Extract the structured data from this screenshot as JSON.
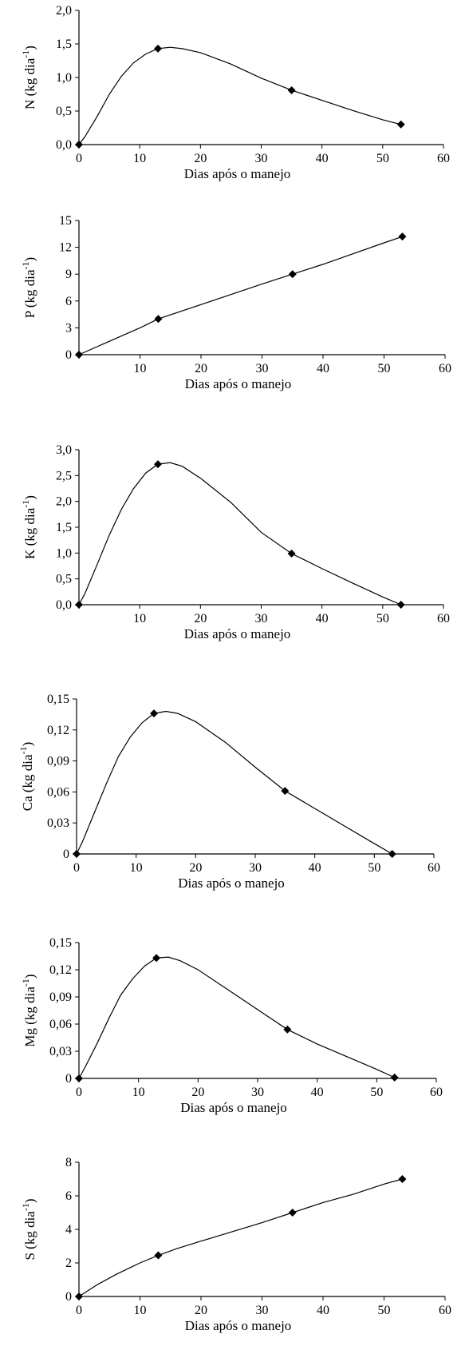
{
  "chart_data": [
    {
      "type": "line",
      "xlabel": "Dias após o manejo",
      "ylabel": "N (kg dia",
      "ylabel_sup": "-1",
      "ylabel_close": ")",
      "xlim": [
        0,
        60
      ],
      "ylim": [
        0,
        2.0
      ],
      "xticks": [
        "0",
        "10",
        "20",
        "30",
        "40",
        "50",
        "60"
      ],
      "yticks": [
        "0,0",
        "0,5",
        "1,0",
        "1,5",
        "2,0"
      ],
      "markers": {
        "x": [
          0,
          13,
          35,
          53
        ],
        "y": [
          0.0,
          1.43,
          0.81,
          0.3
        ]
      },
      "curve": {
        "x": [
          0,
          1,
          3,
          5,
          7,
          9,
          11,
          13,
          15,
          17,
          20,
          25,
          30,
          35,
          40,
          45,
          50,
          53
        ],
        "y": [
          0,
          0.12,
          0.42,
          0.75,
          1.02,
          1.22,
          1.35,
          1.43,
          1.45,
          1.43,
          1.37,
          1.2,
          0.99,
          0.81,
          0.66,
          0.51,
          0.37,
          0.3
        ]
      }
    },
    {
      "type": "line",
      "xlabel": "Dias após o manejo",
      "ylabel": "P (kg dia",
      "ylabel_sup": "-1",
      "ylabel_close": ")",
      "xlim": [
        0,
        60
      ],
      "ylim": [
        0,
        15
      ],
      "xticks": [
        "10",
        "20",
        "30",
        "40",
        "50",
        "60"
      ],
      "yticks": [
        "0",
        "3",
        "6",
        "9",
        "12",
        "15"
      ],
      "markers": {
        "x": [
          0,
          13,
          35,
          53
        ],
        "y": [
          0,
          4.0,
          9.0,
          13.2
        ]
      },
      "curve": {
        "x": [
          0,
          5,
          10,
          13,
          20,
          30,
          35,
          40,
          45,
          50,
          53
        ],
        "y": [
          0,
          1.5,
          3.0,
          4.0,
          5.6,
          7.9,
          9.0,
          10.1,
          11.3,
          12.5,
          13.2
        ]
      }
    },
    {
      "type": "line",
      "xlabel": "Dias após o manejo",
      "ylabel": "K (kg dia",
      "ylabel_sup": "-1",
      "ylabel_close": ")",
      "xlim": [
        0,
        60
      ],
      "ylim": [
        0,
        3.0
      ],
      "xticks": [
        "10",
        "20",
        "30",
        "40",
        "50",
        "60"
      ],
      "yticks": [
        "0,0",
        "0,5",
        "1,0",
        "1,5",
        "2,0",
        "2,5",
        "3,0"
      ],
      "markers": {
        "x": [
          0,
          13,
          35,
          53
        ],
        "y": [
          0.0,
          2.72,
          0.99,
          0.0
        ]
      },
      "curve": {
        "x": [
          0,
          1,
          3,
          5,
          7,
          9,
          11,
          13,
          15,
          17,
          20,
          25,
          30,
          35,
          40,
          45,
          50,
          53
        ],
        "y": [
          0,
          0.22,
          0.78,
          1.35,
          1.85,
          2.25,
          2.55,
          2.72,
          2.75,
          2.68,
          2.45,
          1.98,
          1.4,
          0.99,
          0.7,
          0.42,
          0.15,
          0.0
        ]
      }
    },
    {
      "type": "line",
      "xlabel": "Dias após o manejo",
      "ylabel": "Ca (kg dia",
      "ylabel_sup": "-1",
      "ylabel_close": ")",
      "xlim": [
        0,
        60
      ],
      "ylim": [
        0,
        0.15
      ],
      "xticks": [
        "0",
        "10",
        "20",
        "30",
        "40",
        "50",
        "60"
      ],
      "yticks": [
        "0",
        "0,03",
        "0,06",
        "0,09",
        "0,12",
        "0,15"
      ],
      "markers": {
        "x": [
          0,
          13,
          35,
          53
        ],
        "y": [
          0,
          0.136,
          0.061,
          0
        ]
      },
      "curve": {
        "x": [
          0,
          1,
          3,
          5,
          7,
          9,
          11,
          13,
          15,
          17,
          20,
          25,
          30,
          35,
          40,
          45,
          50,
          53
        ],
        "y": [
          0,
          0.012,
          0.04,
          0.068,
          0.094,
          0.113,
          0.127,
          0.136,
          0.138,
          0.136,
          0.128,
          0.108,
          0.084,
          0.061,
          0.044,
          0.027,
          0.01,
          0
        ]
      }
    },
    {
      "type": "line",
      "xlabel": "Dias após o manejo",
      "ylabel": "Mg (kg dia",
      "ylabel_sup": "-1",
      "ylabel_close": ")",
      "xlim": [
        0,
        60
      ],
      "ylim": [
        0,
        0.15
      ],
      "xticks": [
        "0",
        "10",
        "20",
        "30",
        "40",
        "50",
        "60"
      ],
      "yticks": [
        "0",
        "0,03",
        "0,06",
        "0,09",
        "0,12",
        "0,15"
      ],
      "markers": {
        "x": [
          0,
          13,
          35,
          53
        ],
        "y": [
          0,
          0.133,
          0.054,
          0.001
        ]
      },
      "curve": {
        "x": [
          0,
          1,
          3,
          5,
          7,
          9,
          11,
          13,
          15,
          17,
          20,
          25,
          30,
          35,
          40,
          45,
          50,
          53
        ],
        "y": [
          0,
          0.012,
          0.038,
          0.066,
          0.092,
          0.11,
          0.124,
          0.133,
          0.134,
          0.13,
          0.12,
          0.098,
          0.076,
          0.054,
          0.038,
          0.024,
          0.01,
          0.001
        ]
      }
    },
    {
      "type": "line",
      "xlabel": "Dias após o manejo",
      "ylabel": "S (kg dia",
      "ylabel_sup": "-1",
      "ylabel_close": ")",
      "xlim": [
        0,
        60
      ],
      "ylim": [
        0,
        8
      ],
      "xticks": [
        "0",
        "10",
        "20",
        "30",
        "40",
        "50",
        "60"
      ],
      "yticks": [
        "0",
        "2",
        "4",
        "6",
        "8"
      ],
      "markers": {
        "x": [
          0,
          13,
          35,
          53
        ],
        "y": [
          0,
          2.45,
          5.0,
          7.0
        ]
      },
      "curve": {
        "x": [
          0,
          3,
          6,
          8,
          10,
          13,
          16,
          20,
          25,
          30,
          35,
          40,
          45,
          50,
          53
        ],
        "y": [
          0,
          0.7,
          1.3,
          1.65,
          2.0,
          2.45,
          2.85,
          3.3,
          3.85,
          4.4,
          5.0,
          5.6,
          6.1,
          6.7,
          7.0
        ]
      }
    }
  ]
}
